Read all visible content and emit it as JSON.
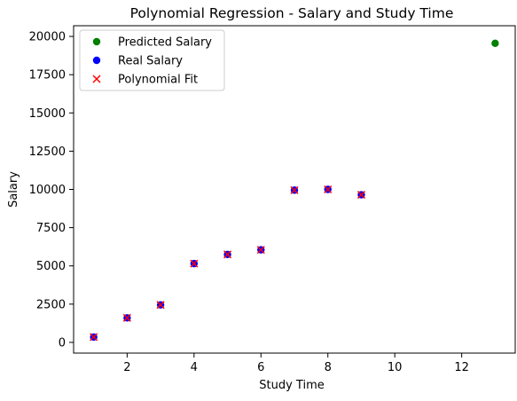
{
  "chart_data": {
    "type": "scatter",
    "title": "Polynomial Regression - Salary and Study Time",
    "xlabel": "Study Time",
    "ylabel": "Salary",
    "xlim": [
      0.4,
      13.6
    ],
    "ylim": [
      -700,
      20700
    ],
    "xticks": [
      2,
      4,
      6,
      8,
      10,
      12
    ],
    "yticks": [
      0,
      2500,
      5000,
      7500,
      10000,
      12500,
      15000,
      17500,
      20000
    ],
    "grid": false,
    "legend_position": "top-left",
    "series": [
      {
        "name": "Predicted Salary",
        "marker": "circle",
        "color": "#008000",
        "points": [
          {
            "x": 13,
            "y": 19550
          }
        ]
      },
      {
        "name": "Real Salary",
        "marker": "circle",
        "color": "#0000ff",
        "points": [
          {
            "x": 1,
            "y": 350
          },
          {
            "x": 2,
            "y": 1600
          },
          {
            "x": 3,
            "y": 2450
          },
          {
            "x": 4,
            "y": 5150
          },
          {
            "x": 5,
            "y": 5750
          },
          {
            "x": 6,
            "y": 6050
          },
          {
            "x": 7,
            "y": 9950
          },
          {
            "x": 8,
            "y": 10000
          },
          {
            "x": 9,
            "y": 9650
          }
        ]
      },
      {
        "name": "Polynomial Fit",
        "marker": "x",
        "color": "#ff0000",
        "points": [
          {
            "x": 1,
            "y": 350
          },
          {
            "x": 2,
            "y": 1600
          },
          {
            "x": 3,
            "y": 2450
          },
          {
            "x": 4,
            "y": 5150
          },
          {
            "x": 5,
            "y": 5750
          },
          {
            "x": 6,
            "y": 6050
          },
          {
            "x": 7,
            "y": 9950
          },
          {
            "x": 8,
            "y": 10000
          },
          {
            "x": 9,
            "y": 9650
          }
        ]
      }
    ]
  }
}
